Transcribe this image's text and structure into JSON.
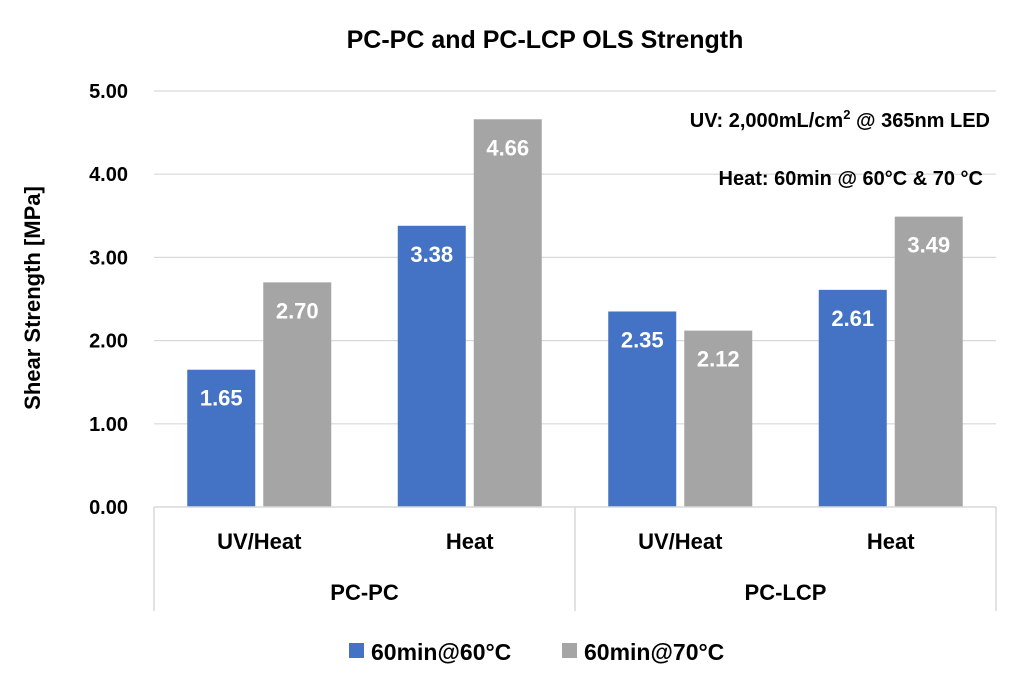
{
  "chart_data": {
    "type": "bar",
    "title": "PC-PC and PC-LCP OLS Strength",
    "ylabel": "Shear Strength [MPa]",
    "ylim": [
      0,
      5
    ],
    "yticks": [
      "0.00",
      "1.00",
      "2.00",
      "3.00",
      "4.00",
      "5.00"
    ],
    "grid": true,
    "legend_position": "bottom",
    "groups": [
      {
        "label": "PC-PC",
        "categories": [
          "UV/Heat",
          "Heat"
        ]
      },
      {
        "label": "PC-LCP",
        "categories": [
          "UV/Heat",
          "Heat"
        ]
      }
    ],
    "series": [
      {
        "name": "60min@60°C",
        "color": "#4472C4",
        "values": [
          1.65,
          3.38,
          2.35,
          2.61
        ],
        "labels": [
          "1.65",
          "3.38",
          "2.35",
          "2.61"
        ]
      },
      {
        "name": "60min@70°C",
        "color": "#A5A5A5",
        "values": [
          2.7,
          4.66,
          2.12,
          3.49
        ],
        "labels": [
          "2.70",
          "4.66",
          "2.12",
          "3.49"
        ]
      }
    ],
    "annotations": {
      "uv_prefix": "UV: 2,000mL/cm",
      "uv_sup": "2",
      "uv_suffix": " @ 365nm LED",
      "heat": "Heat: 60min @ 60°C & 70 °C"
    }
  }
}
